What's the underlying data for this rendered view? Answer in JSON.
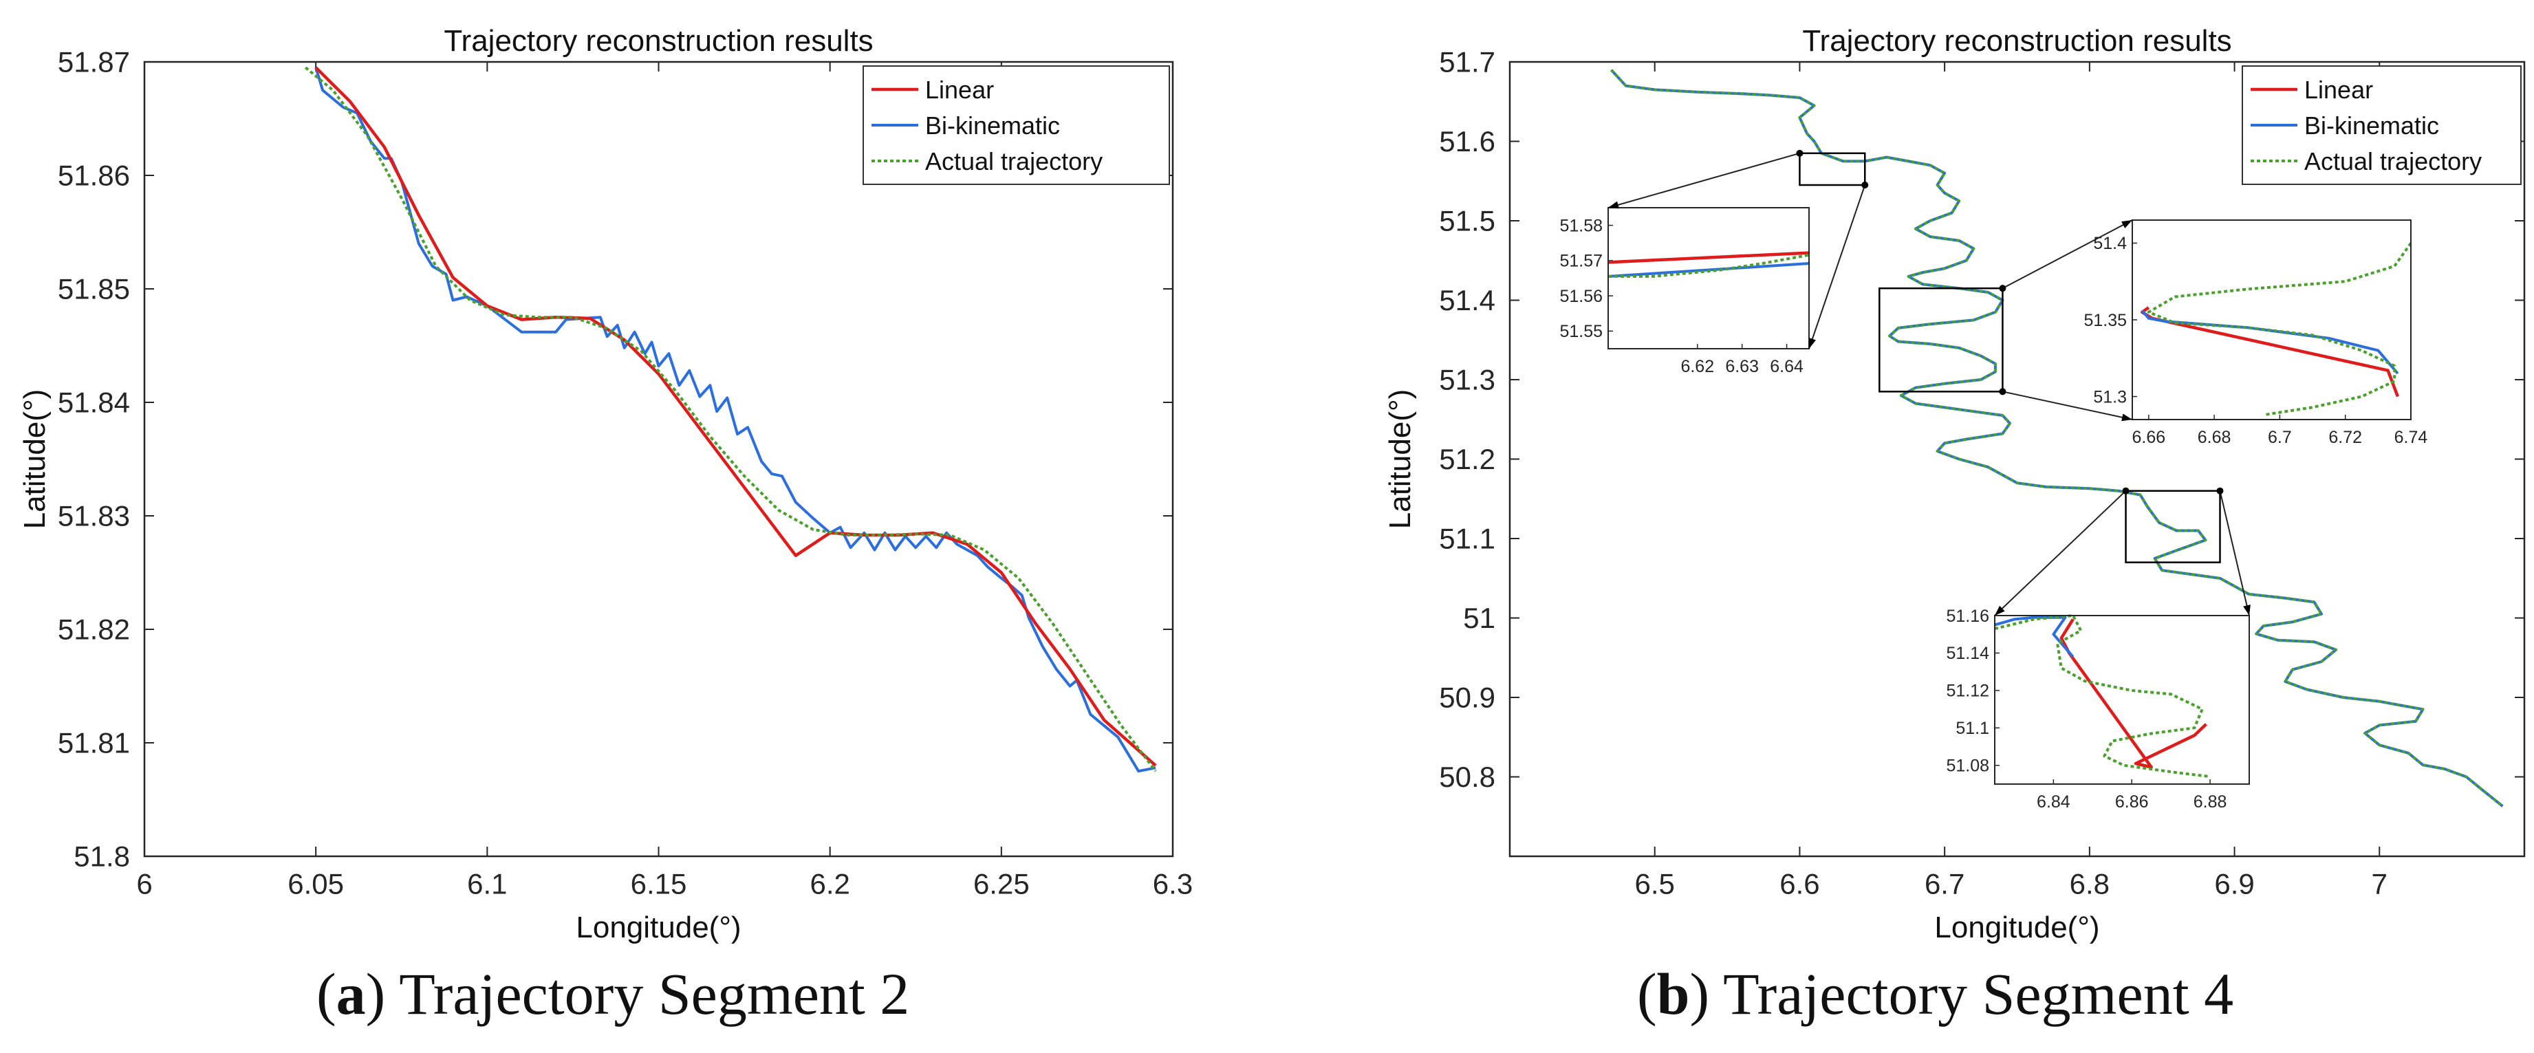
{
  "colors": {
    "linear": "#e01b1b",
    "bikinematic": "#2b6fde",
    "actual": "#4aa02c",
    "axis": "#262626",
    "box": "#000000"
  },
  "legend": [
    "Linear",
    "Bi-kinematic",
    "Actual trajectory"
  ],
  "captions": {
    "a": {
      "letter": "a",
      "text": "Trajectory Segment 2"
    },
    "b": {
      "letter": "b",
      "text": "Trajectory Segment 4"
    }
  },
  "chart_data": [
    {
      "type": "line",
      "title": "Trajectory reconstruction results",
      "xlabel": "Longitude(°)",
      "ylabel": "Latitude(°)",
      "xlim": [
        6.0,
        6.3
      ],
      "ylim": [
        51.8,
        51.87
      ],
      "xticks": [
        6,
        6.05,
        6.1,
        6.15,
        6.2,
        6.25,
        6.3
      ],
      "xtick_labels": [
        "6",
        "6.05",
        "6.1",
        "6.15",
        "6.2",
        "6.25",
        "6.3"
      ],
      "yticks": [
        51.8,
        51.81,
        51.82,
        51.83,
        51.84,
        51.85,
        51.86,
        51.87
      ],
      "ytick_labels": [
        "51.8",
        "51.81",
        "51.82",
        "51.83",
        "51.84",
        "51.85",
        "51.86",
        "51.87"
      ],
      "legend_position": "top-right",
      "series": [
        {
          "name": "Linear",
          "x": [
            6.05,
            6.06,
            6.07,
            6.08,
            6.09,
            6.1,
            6.11,
            6.12,
            6.13,
            6.14,
            6.15,
            6.16,
            6.17,
            6.18,
            6.19,
            6.2,
            6.21,
            6.22,
            6.23,
            6.24,
            6.25,
            6.26,
            6.27,
            6.28,
            6.295
          ],
          "y": [
            51.8695,
            51.8665,
            51.8625,
            51.8565,
            51.851,
            51.8485,
            51.8473,
            51.8475,
            51.8474,
            51.8455,
            51.8425,
            51.8385,
            51.8345,
            51.8305,
            51.8265,
            51.8285,
            51.8283,
            51.8283,
            51.8285,
            51.8275,
            51.825,
            51.8205,
            51.8165,
            51.812,
            51.808
          ]
        },
        {
          "name": "Bi-kinematic",
          "x": [
            6.05,
            6.052,
            6.058,
            6.062,
            6.066,
            6.07,
            6.072,
            6.075,
            6.08,
            6.084,
            6.088,
            6.09,
            6.094,
            6.1,
            6.11,
            6.12,
            6.123,
            6.133,
            6.135,
            6.138,
            6.14,
            6.143,
            6.146,
            6.148,
            6.15,
            6.153,
            6.156,
            6.159,
            6.162,
            6.165,
            6.167,
            6.17,
            6.173,
            6.176,
            6.18,
            6.183,
            6.186,
            6.19,
            6.195,
            6.2,
            6.203,
            6.206,
            6.21,
            6.213,
            6.216,
            6.219,
            6.222,
            6.225,
            6.228,
            6.231,
            6.234,
            6.237,
            6.24,
            6.243,
            6.246,
            6.25,
            6.253,
            6.256,
            6.258,
            6.262,
            6.266,
            6.27,
            6.272,
            6.276,
            6.278,
            6.28,
            6.284,
            6.29,
            6.295
          ],
          "y": [
            51.8695,
            51.8675,
            51.866,
            51.8655,
            51.863,
            51.8615,
            51.8615,
            51.8595,
            51.854,
            51.852,
            51.8513,
            51.849,
            51.8493,
            51.8485,
            51.8462,
            51.8462,
            51.8473,
            51.8475,
            51.8458,
            51.8468,
            51.8448,
            51.8462,
            51.8443,
            51.8453,
            51.8432,
            51.8443,
            51.8415,
            51.8428,
            51.8405,
            51.8415,
            51.8392,
            51.8404,
            51.8372,
            51.8378,
            51.8348,
            51.8337,
            51.8335,
            51.8312,
            51.8298,
            51.8285,
            51.829,
            51.8272,
            51.8285,
            51.827,
            51.8285,
            51.827,
            51.8282,
            51.8272,
            51.8282,
            51.8272,
            51.8285,
            51.8275,
            51.827,
            51.8265,
            51.8255,
            51.8245,
            51.8238,
            51.823,
            51.821,
            51.8185,
            51.8165,
            51.815,
            51.8155,
            51.8125,
            51.812,
            51.8115,
            51.8105,
            51.8075,
            51.8078
          ]
        },
        {
          "name": "Actual trajectory",
          "x": [
            6.047,
            6.055,
            6.065,
            6.075,
            6.085,
            6.095,
            6.105,
            6.115,
            6.125,
            6.135,
            6.145,
            6.155,
            6.165,
            6.175,
            6.185,
            6.195,
            6.205,
            6.215,
            6.225,
            6.235,
            6.245,
            6.255,
            6.265,
            6.275,
            6.285,
            6.295
          ],
          "y": [
            51.8695,
            51.8675,
            51.8635,
            51.858,
            51.852,
            51.849,
            51.8477,
            51.8475,
            51.8475,
            51.8465,
            51.8445,
            51.841,
            51.837,
            51.8335,
            51.8305,
            51.8288,
            51.8283,
            51.8283,
            51.8284,
            51.8283,
            51.827,
            51.8245,
            51.8205,
            51.816,
            51.8115,
            51.8075
          ]
        }
      ]
    },
    {
      "type": "line",
      "title": "Trajectory reconstruction results",
      "xlabel": "Longitude(°)",
      "ylabel": "Latitude(°)",
      "xlim": [
        6.4,
        7.1
      ],
      "ylim": [
        50.7,
        51.7
      ],
      "xticks": [
        6.5,
        6.6,
        6.7,
        6.8,
        6.9,
        7
      ],
      "xtick_labels": [
        "6.5",
        "6.6",
        "6.7",
        "6.8",
        "6.9",
        "7"
      ],
      "yticks": [
        50.8,
        50.9,
        51,
        51.1,
        51.2,
        51.3,
        51.4,
        51.5,
        51.6,
        51.7
      ],
      "ytick_labels": [
        "50.8",
        "50.9",
        "51",
        "51.1",
        "51.2",
        "51.3",
        "51.4",
        "51.5",
        "51.6",
        "51.7"
      ],
      "legend_position": "top-right",
      "trajectory_xy": [
        [
          6.47,
          51.69
        ],
        [
          6.48,
          51.67
        ],
        [
          6.5,
          51.665
        ],
        [
          6.53,
          51.662
        ],
        [
          6.56,
          51.66
        ],
        [
          6.58,
          51.658
        ],
        [
          6.6,
          51.655
        ],
        [
          6.61,
          51.645
        ],
        [
          6.6,
          51.63
        ],
        [
          6.605,
          51.61
        ],
        [
          6.61,
          51.6
        ],
        [
          6.615,
          51.585
        ],
        [
          6.63,
          51.575
        ],
        [
          6.645,
          51.575
        ],
        [
          6.66,
          51.58
        ],
        [
          6.675,
          51.575
        ],
        [
          6.69,
          51.57
        ],
        [
          6.7,
          51.56
        ],
        [
          6.695,
          51.545
        ],
        [
          6.7,
          51.535
        ],
        [
          6.71,
          51.525
        ],
        [
          6.705,
          51.51
        ],
        [
          6.69,
          51.5
        ],
        [
          6.68,
          51.49
        ],
        [
          6.69,
          51.48
        ],
        [
          6.71,
          51.475
        ],
        [
          6.72,
          51.465
        ],
        [
          6.715,
          51.45
        ],
        [
          6.7,
          51.44
        ],
        [
          6.685,
          51.435
        ],
        [
          6.675,
          51.43
        ],
        [
          6.685,
          51.42
        ],
        [
          6.71,
          51.415
        ],
        [
          6.73,
          51.41
        ],
        [
          6.74,
          51.4
        ],
        [
          6.735,
          51.385
        ],
        [
          6.72,
          51.375
        ],
        [
          6.69,
          51.37
        ],
        [
          6.668,
          51.365
        ],
        [
          6.662,
          51.355
        ],
        [
          6.668,
          51.348
        ],
        [
          6.69,
          51.345
        ],
        [
          6.71,
          51.34
        ],
        [
          6.725,
          51.33
        ],
        [
          6.735,
          51.32
        ],
        [
          6.735,
          51.31
        ],
        [
          6.725,
          51.3
        ],
        [
          6.7,
          51.295
        ],
        [
          6.68,
          51.29
        ],
        [
          6.67,
          51.28
        ],
        [
          6.68,
          51.27
        ],
        [
          6.7,
          51.265
        ],
        [
          6.72,
          51.26
        ],
        [
          6.74,
          51.255
        ],
        [
          6.745,
          51.245
        ],
        [
          6.74,
          51.232
        ],
        [
          6.715,
          51.225
        ],
        [
          6.7,
          51.22
        ],
        [
          6.695,
          51.21
        ],
        [
          6.71,
          51.2
        ],
        [
          6.73,
          51.19
        ],
        [
          6.74,
          51.18
        ],
        [
          6.75,
          51.17
        ],
        [
          6.77,
          51.165
        ],
        [
          6.8,
          51.163
        ],
        [
          6.82,
          51.16
        ],
        [
          6.835,
          51.155
        ],
        [
          6.84,
          51.14
        ],
        [
          6.848,
          51.12
        ],
        [
          6.86,
          51.11
        ],
        [
          6.875,
          51.11
        ],
        [
          6.88,
          51.098
        ],
        [
          6.86,
          51.085
        ],
        [
          6.845,
          51.075
        ],
        [
          6.85,
          51.06
        ],
        [
          6.87,
          51.055
        ],
        [
          6.89,
          51.05
        ],
        [
          6.9,
          51.04
        ],
        [
          6.91,
          51.03
        ],
        [
          6.935,
          51.025
        ],
        [
          6.955,
          51.02
        ],
        [
          6.96,
          51.005
        ],
        [
          6.94,
          50.995
        ],
        [
          6.92,
          50.99
        ],
        [
          6.915,
          50.98
        ],
        [
          6.93,
          50.972
        ],
        [
          6.955,
          50.97
        ],
        [
          6.97,
          50.96
        ],
        [
          6.96,
          50.945
        ],
        [
          6.94,
          50.935
        ],
        [
          6.935,
          50.92
        ],
        [
          6.95,
          50.91
        ],
        [
          6.975,
          50.9
        ],
        [
          7.0,
          50.895
        ],
        [
          7.015,
          50.89
        ],
        [
          7.03,
          50.885
        ],
        [
          7.025,
          50.87
        ],
        [
          7.0,
          50.865
        ],
        [
          6.99,
          50.855
        ],
        [
          7.0,
          50.84
        ],
        [
          7.02,
          50.83
        ],
        [
          7.03,
          50.815
        ],
        [
          7.045,
          50.81
        ],
        [
          7.06,
          50.8
        ],
        [
          7.07,
          50.785
        ],
        [
          7.085,
          50.763
        ]
      ],
      "insets": [
        {
          "xlim": [
            6.6,
            6.645
          ],
          "ylim": [
            51.545,
            51.585
          ],
          "xticks": [
            6.62,
            6.63,
            6.64
          ],
          "xtick_labels": [
            "6.62",
            "6.63",
            "6.64"
          ],
          "yticks": [
            51.55,
            51.56,
            51.57,
            51.58
          ],
          "ytick_labels": [
            "51.55",
            "51.56",
            "51.57",
            "51.58"
          ],
          "series": [
            {
              "name": "Linear",
              "x": [
                6.6,
                6.645
              ],
              "y": [
                51.5695,
                51.5722
              ]
            },
            {
              "name": "Bi-kinematic",
              "x": [
                6.6,
                6.645
              ],
              "y": [
                51.5655,
                51.5692
              ]
            },
            {
              "name": "Actual trajectory",
              "x": [
                6.6,
                6.61,
                6.625,
                6.635,
                6.645
              ],
              "y": [
                51.5655,
                51.5655,
                51.5673,
                51.5693,
                51.5716
              ]
            }
          ]
        },
        {
          "xlim": [
            6.655,
            6.74
          ],
          "ylim": [
            51.285,
            51.415
          ],
          "xticks": [
            6.66,
            6.68,
            6.7,
            6.72,
            6.74
          ],
          "xtick_labels": [
            "6.66",
            "6.68",
            "6.7",
            "6.72",
            "6.74"
          ],
          "yticks": [
            51.3,
            51.35,
            51.4
          ],
          "ytick_labels": [
            "51.3",
            "51.35",
            "51.4"
          ],
          "series": [
            {
              "name": "Linear",
              "x": [
                6.66,
                6.658,
                6.661,
                6.733,
                6.736
              ],
              "y": [
                51.358,
                51.355,
                51.351,
                51.317,
                51.3
              ]
            },
            {
              "name": "Bi-kinematic",
              "x": [
                6.658,
                6.66,
                6.665,
                6.69,
                6.715,
                6.73,
                6.736
              ],
              "y": [
                51.356,
                51.351,
                51.349,
                51.345,
                51.338,
                51.33,
                51.315
              ]
            },
            {
              "name": "Actual trajectory",
              "x": [
                6.74,
                6.735,
                6.72,
                6.69,
                6.668,
                6.66,
                6.668,
                6.69,
                6.71,
                6.725,
                6.735,
                6.735,
                6.725,
                6.71,
                6.695
              ],
              "y": [
                51.4,
                51.385,
                51.375,
                51.37,
                51.365,
                51.355,
                51.348,
                51.345,
                51.34,
                51.33,
                51.32,
                51.31,
                51.3,
                51.293,
                51.288
              ]
            }
          ]
        },
        {
          "xlim": [
            6.825,
            6.89
          ],
          "ylim": [
            51.07,
            51.16
          ],
          "xticks": [
            6.84,
            6.86,
            6.88
          ],
          "xtick_labels": [
            "6.84",
            "6.86",
            "6.88"
          ],
          "yticks": [
            51.08,
            51.1,
            51.12,
            51.14,
            51.16
          ],
          "ytick_labels": [
            "51.08",
            "51.1",
            "51.12",
            "51.14",
            "51.16"
          ],
          "series": [
            {
              "name": "Linear",
              "x": [
                6.845,
                6.842,
                6.844,
                6.865,
                6.861,
                6.876,
                6.879
              ],
              "y": [
                51.158,
                51.148,
                51.14,
                51.079,
                51.081,
                51.096,
                51.102
              ]
            },
            {
              "name": "Bi-kinematic",
              "x": [
                6.825,
                6.83,
                6.835,
                6.843,
                6.84,
                6.845
              ],
              "y": [
                51.155,
                51.158,
                51.159,
                51.159,
                51.15,
                51.138
              ]
            },
            {
              "name": "Actual trajectory",
              "x": [
                6.825,
                6.835,
                6.845,
                6.847,
                6.841,
                6.842,
                6.848,
                6.86,
                6.87,
                6.878,
                6.876,
                6.865,
                6.855,
                6.853,
                6.858,
                6.872,
                6.88
              ],
              "y": [
                51.153,
                51.158,
                51.16,
                51.152,
                51.145,
                51.132,
                51.125,
                51.12,
                51.118,
                51.11,
                51.1,
                51.097,
                51.093,
                51.085,
                51.08,
                51.076,
                51.074
              ]
            }
          ]
        }
      ]
    }
  ]
}
